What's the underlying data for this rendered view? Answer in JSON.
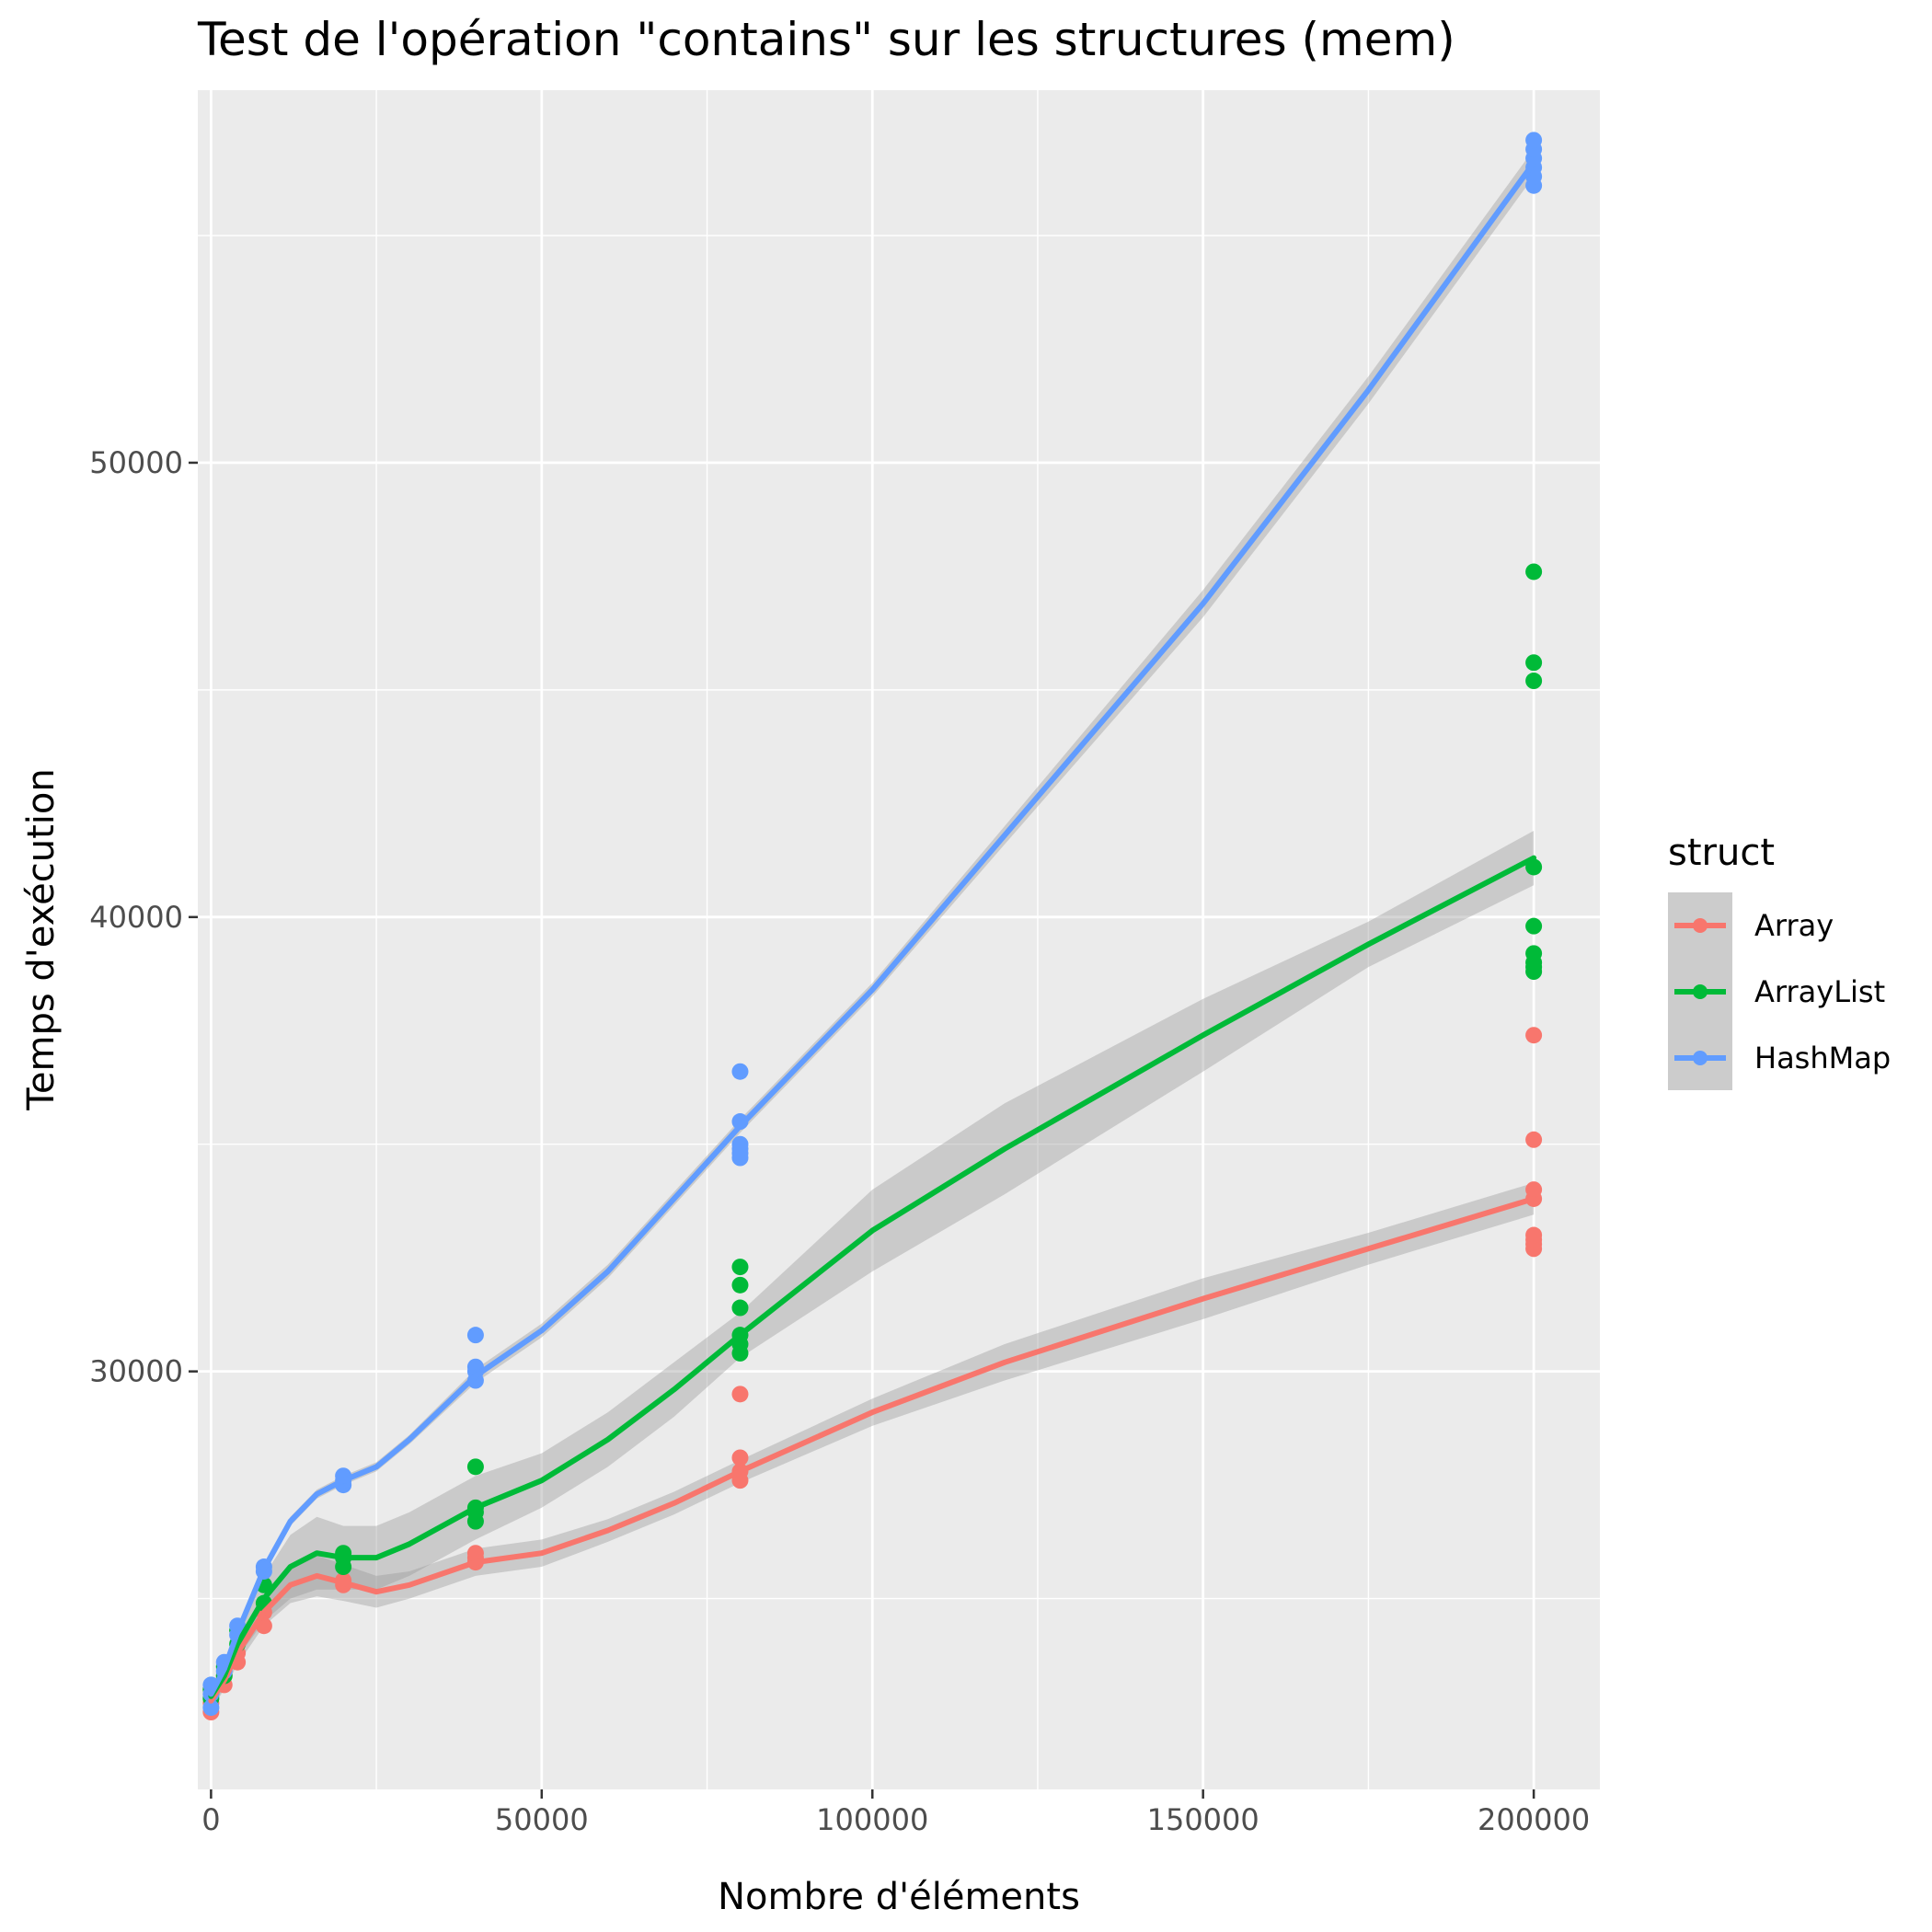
{
  "chart_data": {
    "type": "scatter",
    "title": "Test de l'opération \"contains\" sur les structures (mem)",
    "xlabel": "Nombre d'éléments",
    "ylabel": "Temps d'exécution",
    "xlim": [
      -2000,
      210000
    ],
    "ylim": [
      20800,
      58200
    ],
    "x_ticks": [
      0,
      50000,
      100000,
      150000,
      200000
    ],
    "x_tick_labels": [
      "0",
      "50000",
      "100000",
      "150000",
      "200000"
    ],
    "x_minor_ticks": [
      25000,
      75000,
      125000,
      175000
    ],
    "y_ticks": [
      30000,
      40000,
      50000
    ],
    "y_tick_labels": [
      "30000",
      "40000",
      "50000"
    ],
    "y_minor_ticks": [
      25000,
      35000,
      45000,
      55000
    ],
    "grid": true,
    "background": "#ebebeb",
    "legend": {
      "title": "struct",
      "position": "right"
    },
    "series": [
      {
        "name": "Array",
        "color": "#f8766d",
        "points": [
          [
            0,
            22500
          ],
          [
            0,
            22700
          ],
          [
            0,
            22900
          ],
          [
            0,
            23000
          ],
          [
            2000,
            23100
          ],
          [
            2000,
            23300
          ],
          [
            4000,
            23600
          ],
          [
            4000,
            23800
          ],
          [
            8000,
            24400
          ],
          [
            8000,
            24700
          ],
          [
            20000,
            25300
          ],
          [
            20000,
            25400
          ],
          [
            40000,
            25800
          ],
          [
            40000,
            25900
          ],
          [
            40000,
            26000
          ],
          [
            80000,
            27600
          ],
          [
            80000,
            27800
          ],
          [
            80000,
            28100
          ],
          [
            80000,
            29500
          ],
          [
            200000,
            32700
          ],
          [
            200000,
            32800
          ],
          [
            200000,
            32900
          ],
          [
            200000,
            33000
          ],
          [
            200000,
            33800
          ],
          [
            200000,
            34000
          ],
          [
            200000,
            35100
          ],
          [
            200000,
            37400
          ]
        ],
        "smooth": [
          [
            0,
            22750
          ],
          [
            2000,
            23200
          ],
          [
            4000,
            23800
          ],
          [
            8000,
            24700
          ],
          [
            12000,
            25300
          ],
          [
            16000,
            25500
          ],
          [
            20000,
            25350
          ],
          [
            25000,
            25150
          ],
          [
            30000,
            25300
          ],
          [
            40000,
            25800
          ],
          [
            50000,
            26000
          ],
          [
            60000,
            26500
          ],
          [
            70000,
            27100
          ],
          [
            80000,
            27800
          ],
          [
            100000,
            29100
          ],
          [
            120000,
            30200
          ],
          [
            150000,
            31600
          ],
          [
            175000,
            32700
          ],
          [
            200000,
            33800
          ]
        ],
        "ribbon": [
          [
            0,
            22550,
            22950
          ],
          [
            2000,
            23000,
            23400
          ],
          [
            4000,
            23550,
            24050
          ],
          [
            8000,
            24400,
            25000
          ],
          [
            12000,
            24900,
            25700
          ],
          [
            16000,
            25050,
            25950
          ],
          [
            20000,
            24950,
            25750
          ],
          [
            25000,
            24800,
            25500
          ],
          [
            30000,
            25000,
            25600
          ],
          [
            40000,
            25500,
            26100
          ],
          [
            50000,
            25700,
            26300
          ],
          [
            60000,
            26250,
            26750
          ],
          [
            70000,
            26850,
            27350
          ],
          [
            80000,
            27550,
            28050
          ],
          [
            100000,
            28800,
            29400
          ],
          [
            120000,
            29800,
            30600
          ],
          [
            150000,
            31150,
            32050
          ],
          [
            175000,
            32350,
            33050
          ],
          [
            200000,
            33450,
            34150
          ]
        ]
      },
      {
        "name": "ArrayList",
        "color": "#00ba38",
        "points": [
          [
            0,
            22800
          ],
          [
            0,
            23000
          ],
          [
            2000,
            23300
          ],
          [
            2000,
            23500
          ],
          [
            4000,
            24000
          ],
          [
            4000,
            24300
          ],
          [
            8000,
            24900
          ],
          [
            8000,
            25300
          ],
          [
            20000,
            25700
          ],
          [
            20000,
            25900
          ],
          [
            20000,
            26000
          ],
          [
            40000,
            26700
          ],
          [
            40000,
            26900
          ],
          [
            40000,
            27000
          ],
          [
            40000,
            27900
          ],
          [
            80000,
            30400
          ],
          [
            80000,
            30600
          ],
          [
            80000,
            30800
          ],
          [
            80000,
            31400
          ],
          [
            80000,
            31900
          ],
          [
            80000,
            32300
          ],
          [
            200000,
            38800
          ],
          [
            200000,
            38900
          ],
          [
            200000,
            39000
          ],
          [
            200000,
            39200
          ],
          [
            200000,
            39800
          ],
          [
            200000,
            41100
          ],
          [
            200000,
            45200
          ],
          [
            200000,
            45600
          ],
          [
            200000,
            47600
          ]
        ],
        "smooth": [
          [
            0,
            22850
          ],
          [
            2000,
            23300
          ],
          [
            4000,
            24000
          ],
          [
            8000,
            25000
          ],
          [
            12000,
            25700
          ],
          [
            16000,
            26000
          ],
          [
            20000,
            25900
          ],
          [
            25000,
            25900
          ],
          [
            30000,
            26200
          ],
          [
            40000,
            27000
          ],
          [
            50000,
            27600
          ],
          [
            60000,
            28500
          ],
          [
            70000,
            29600
          ],
          [
            80000,
            30800
          ],
          [
            100000,
            33100
          ],
          [
            120000,
            34900
          ],
          [
            150000,
            37400
          ],
          [
            175000,
            39400
          ],
          [
            200000,
            41300
          ]
        ],
        "ribbon": [
          [
            0,
            22600,
            23100
          ],
          [
            2000,
            23050,
            23550
          ],
          [
            4000,
            23700,
            24300
          ],
          [
            8000,
            24500,
            25500
          ],
          [
            12000,
            25000,
            26400
          ],
          [
            16000,
            25200,
            26800
          ],
          [
            20000,
            25200,
            26600
          ],
          [
            25000,
            25200,
            26600
          ],
          [
            30000,
            25500,
            26900
          ],
          [
            40000,
            26300,
            27700
          ],
          [
            50000,
            27000,
            28200
          ],
          [
            60000,
            27900,
            29100
          ],
          [
            70000,
            29000,
            30200
          ],
          [
            80000,
            30300,
            31300
          ],
          [
            100000,
            32200,
            34000
          ],
          [
            120000,
            33900,
            35900
          ],
          [
            150000,
            36600,
            38200
          ],
          [
            175000,
            38900,
            39900
          ],
          [
            200000,
            40700,
            41900
          ]
        ]
      },
      {
        "name": "HashMap",
        "color": "#619cff",
        "points": [
          [
            0,
            22600
          ],
          [
            0,
            22900
          ],
          [
            0,
            23100
          ],
          [
            2000,
            23400
          ],
          [
            2000,
            23600
          ],
          [
            4000,
            24200
          ],
          [
            4000,
            24400
          ],
          [
            8000,
            25600
          ],
          [
            8000,
            25700
          ],
          [
            20000,
            27500
          ],
          [
            20000,
            27600
          ],
          [
            20000,
            27700
          ],
          [
            40000,
            29800
          ],
          [
            40000,
            30000
          ],
          [
            40000,
            30100
          ],
          [
            40000,
            30800
          ],
          [
            80000,
            34700
          ],
          [
            80000,
            34800
          ],
          [
            80000,
            34900
          ],
          [
            80000,
            35000
          ],
          [
            80000,
            35500
          ],
          [
            80000,
            36600
          ],
          [
            200000,
            56100
          ],
          [
            200000,
            56300
          ],
          [
            200000,
            56500
          ],
          [
            200000,
            56700
          ],
          [
            200000,
            56900
          ],
          [
            200000,
            57100
          ]
        ],
        "smooth": [
          [
            0,
            22900
          ],
          [
            2000,
            23450
          ],
          [
            4000,
            24250
          ],
          [
            8000,
            25650
          ],
          [
            12000,
            26700
          ],
          [
            16000,
            27300
          ],
          [
            20000,
            27600
          ],
          [
            25000,
            27900
          ],
          [
            30000,
            28500
          ],
          [
            40000,
            29900
          ],
          [
            50000,
            30900
          ],
          [
            60000,
            32200
          ],
          [
            70000,
            33800
          ],
          [
            80000,
            35400
          ],
          [
            100000,
            38400
          ],
          [
            120000,
            41800
          ],
          [
            150000,
            46900
          ],
          [
            175000,
            51600
          ],
          [
            200000,
            56600
          ]
        ],
        "ribbon": [
          [
            0,
            22800,
            23000
          ],
          [
            2000,
            23350,
            23550
          ],
          [
            4000,
            24150,
            24350
          ],
          [
            8000,
            25550,
            25750
          ],
          [
            12000,
            26600,
            26800
          ],
          [
            16000,
            27200,
            27400
          ],
          [
            20000,
            27500,
            27700
          ],
          [
            25000,
            27800,
            28000
          ],
          [
            30000,
            28400,
            28600
          ],
          [
            40000,
            29750,
            30050
          ],
          [
            50000,
            30750,
            31050
          ],
          [
            60000,
            32050,
            32350
          ],
          [
            70000,
            33650,
            33950
          ],
          [
            80000,
            35250,
            35550
          ],
          [
            100000,
            38250,
            38550
          ],
          [
            120000,
            41600,
            42000
          ],
          [
            150000,
            46600,
            47200
          ],
          [
            175000,
            51300,
            51900
          ],
          [
            200000,
            56300,
            56900
          ]
        ]
      }
    ]
  }
}
